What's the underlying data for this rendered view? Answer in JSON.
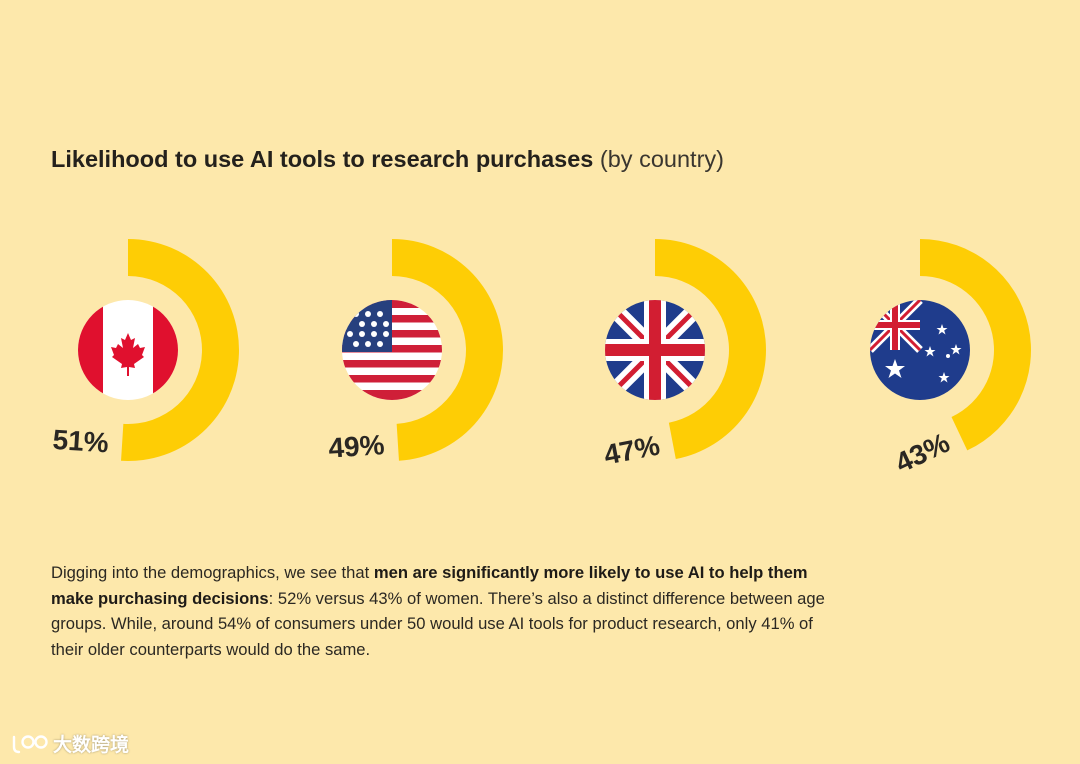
{
  "page": {
    "background": "#fde8ab",
    "title_bold": "Likelihood to use AI tools to research purchases",
    "title_light": "(by country)"
  },
  "chart_data": {
    "type": "radial-bar",
    "title": "Likelihood to use AI tools to research purchases (by country)",
    "unit": "%",
    "accent_color": "#fecd05",
    "series": [
      {
        "category": "Canada",
        "flag_icon": "canada-flag-icon",
        "value": 51,
        "label": "51%"
      },
      {
        "category": "United States",
        "flag_icon": "us-flag-icon",
        "value": 49,
        "label": "49%"
      },
      {
        "category": "United Kingdom",
        "flag_icon": "uk-flag-icon",
        "value": 47,
        "label": "47%"
      },
      {
        "category": "Australia",
        "flag_icon": "australia-flag-icon",
        "value": 43,
        "label": "43%"
      }
    ]
  },
  "description": {
    "part1": "Digging into the demographics, we see that ",
    "bold": "men are significantly more likely to use AI to help them make purchasing decisions",
    "part2": ": 52% versus 43% of women. There’s also a distinct difference between age groups. While, around 54% of consumers under 50 would use AI tools for product research, only 41% of their older counterparts would do the same."
  },
  "watermark": {
    "text": "大数跨境",
    "icon": "brand-logo-icon"
  }
}
